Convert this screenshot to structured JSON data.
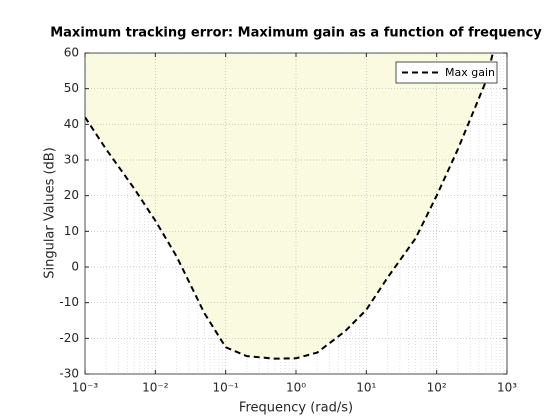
{
  "chart_data": {
    "type": "line",
    "title": "Maximum tracking error: Maximum gain as a function of frequency",
    "xlabel": "Frequency (rad/s)",
    "ylabel": "Singular Values (dB)",
    "x": [
      0.001,
      0.002,
      0.005,
      0.01,
      0.02,
      0.05,
      0.1,
      0.2,
      0.5,
      1,
      2,
      5,
      10,
      20,
      50,
      100,
      200,
      500,
      630
    ],
    "series": [
      {
        "name": "Max gain",
        "color": "#000000",
        "line_style": "dashed",
        "fill_above": "#fafae1",
        "values": [
          42,
          33,
          22,
          13,
          3,
          -13,
          -22.5,
          -25,
          -25.7,
          -25.6,
          -24,
          -18,
          -12,
          -3,
          8,
          20,
          33,
          52,
          60
        ]
      }
    ],
    "x_scale": "log",
    "xlim": [
      0.001,
      1000
    ],
    "xticks": [
      {
        "value": 0.001,
        "label": "10⁻³"
      },
      {
        "value": 0.01,
        "label": "10⁻²"
      },
      {
        "value": 0.1,
        "label": "10⁻¹"
      },
      {
        "value": 1,
        "label": "10⁰"
      },
      {
        "value": 10,
        "label": "10¹"
      },
      {
        "value": 100,
        "label": "10²"
      },
      {
        "value": 1000,
        "label": "10³"
      }
    ],
    "ylim": [
      -30,
      60
    ],
    "yticks": [
      -30,
      -20,
      -10,
      0,
      10,
      20,
      30,
      40,
      50,
      60
    ],
    "grid": true,
    "minor_grid": true,
    "legend": "top-right"
  }
}
